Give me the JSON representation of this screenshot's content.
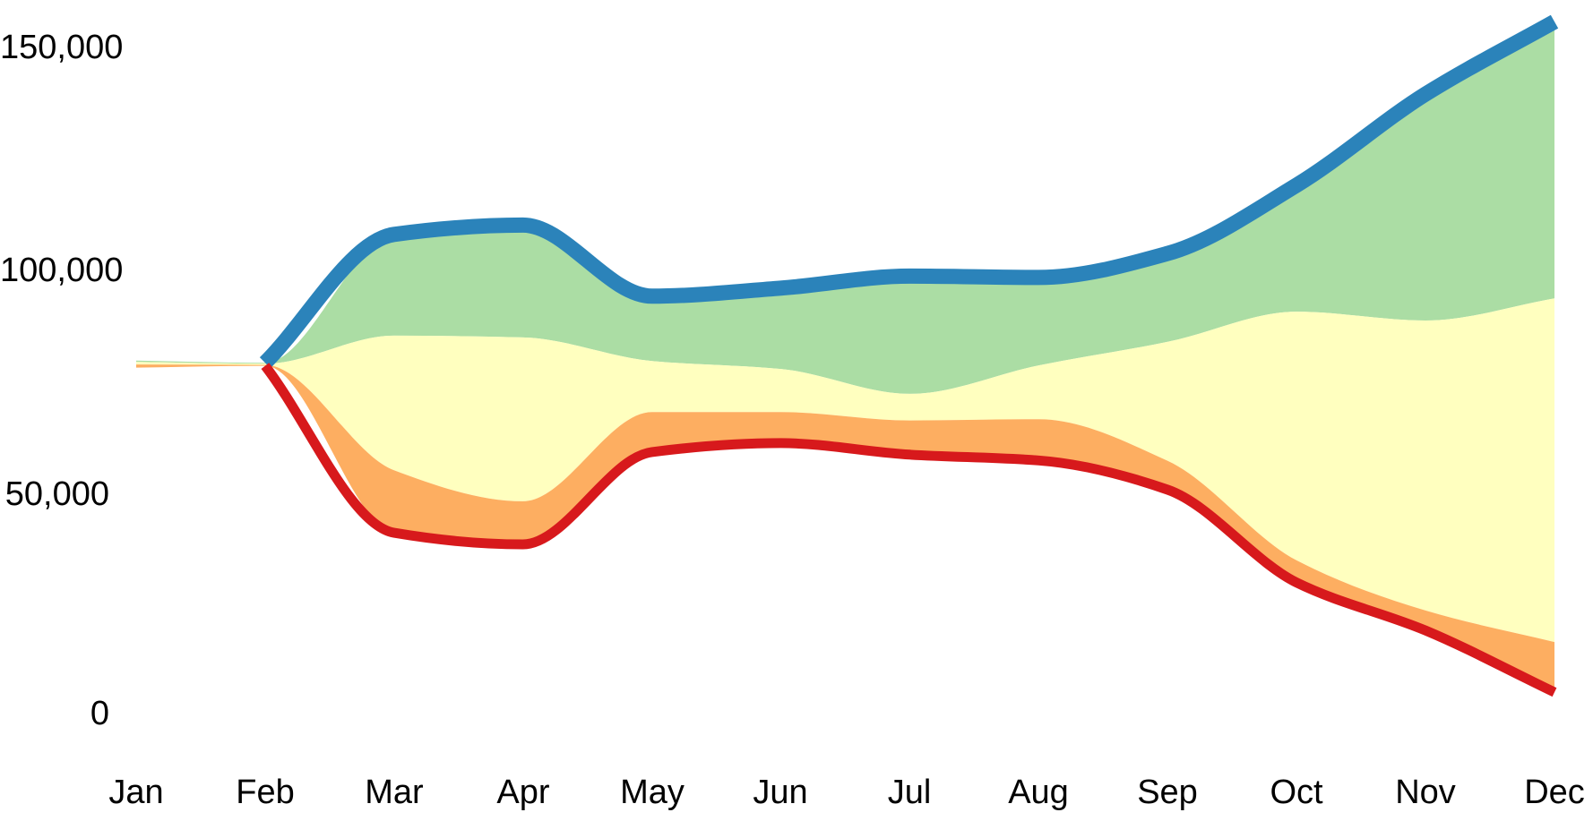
{
  "chart_data": {
    "type": "area",
    "title": "",
    "subtitle": "",
    "xlabel": "",
    "ylabel": "",
    "legend": "none",
    "grid": false,
    "background": "#ffffff",
    "x_labels": [
      "Jan",
      "Feb",
      "Mar",
      "Apr",
      "May",
      "Jun",
      "Jul",
      "Aug",
      "Sep",
      "Oct",
      "Nov",
      "Dec"
    ],
    "y_ticks": [
      {
        "value": 0,
        "label": "0"
      },
      {
        "value": 50000,
        "label": "50,000"
      },
      {
        "value": 100000,
        "label": "100,000"
      },
      {
        "value": 150000,
        "label": "150,000"
      }
    ],
    "ylim": [
      0,
      158000
    ],
    "palette": {
      "blue": "#2b83ba",
      "green": "#abdda4",
      "yellow": "#ffffbf",
      "orange": "#fdae61",
      "red": "#d7191c"
    },
    "boundaries": [
      {
        "name": "upper-bound-line",
        "role": "line",
        "color": "#2b83ba",
        "stroke_width": 17,
        "values": [
          79500,
          79000,
          107900,
          110000,
          94000,
          95800,
          98500,
          98200,
          103600,
          119000,
          139500,
          155800
        ]
      },
      {
        "name": "green-yellow-boundary",
        "role": "boundary",
        "values": [
          79200,
          78800,
          85100,
          84700,
          79400,
          77600,
          72000,
          78400,
          83700,
          90500,
          88500,
          93500
        ]
      },
      {
        "name": "yellow-orange-boundary",
        "role": "boundary",
        "values": [
          78600,
          78500,
          54800,
          47800,
          67900,
          67900,
          66000,
          66300,
          56900,
          34500,
          23200,
          16100
        ]
      },
      {
        "name": "lower-bound-line",
        "role": "line",
        "color": "#d7191c",
        "stroke_width": 11,
        "values": [
          77900,
          78300,
          40700,
          38100,
          58900,
          60900,
          58300,
          57000,
          50400,
          29500,
          18700,
          4800
        ]
      }
    ],
    "bands": [
      {
        "name": "upper-band",
        "color": "#abdda4",
        "top": 0,
        "bottom": 1
      },
      {
        "name": "middle-band",
        "color": "#ffffbf",
        "top": 1,
        "bottom": 2
      },
      {
        "name": "lower-band",
        "color": "#fdae61",
        "top": 2,
        "bottom": 3
      }
    ],
    "notes": "Fan chart: all bands converge near 79,000 in Jan-Feb, diverge afterwards; thick blue and red edge lines begin at the February pinch point."
  }
}
